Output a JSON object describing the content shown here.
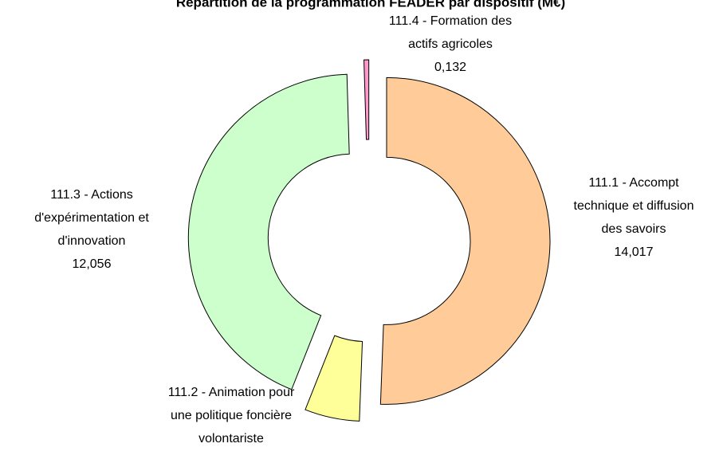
{
  "chart_data": {
    "type": "donut",
    "title": "Répartition de la programmation FEADER par dispositif (M€)",
    "categories": [
      [
        "111.1 - Accompt",
        "technique et diffusion",
        "des savoirs"
      ],
      [
        "111.2 - Animation pour",
        "une politique foncière",
        "volontariste"
      ],
      [
        "111.3 - Actions",
        "d'expérimentation et",
        "d'innovation"
      ],
      [
        "111.4 - Formation des",
        "actifs agricoles"
      ]
    ],
    "values": [
      14.017,
      1.5,
      12.056,
      0.132
    ],
    "value_labels": [
      "14,017",
      null,
      "12,056",
      "0,132"
    ],
    "colors": [
      "#ffcc99",
      "#ffff99",
      "#ccffcc",
      "#ff99cc"
    ]
  }
}
